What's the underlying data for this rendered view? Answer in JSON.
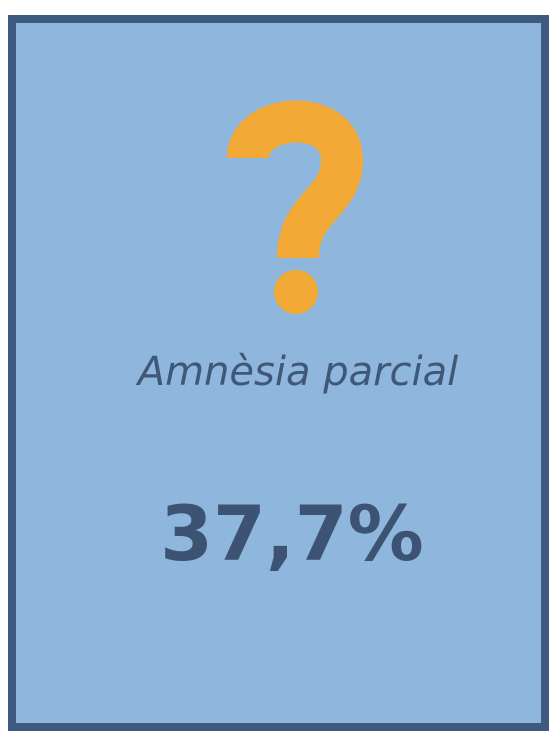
{
  "card": {
    "label": "Amnèsia parcial",
    "value": "37,7%"
  }
}
